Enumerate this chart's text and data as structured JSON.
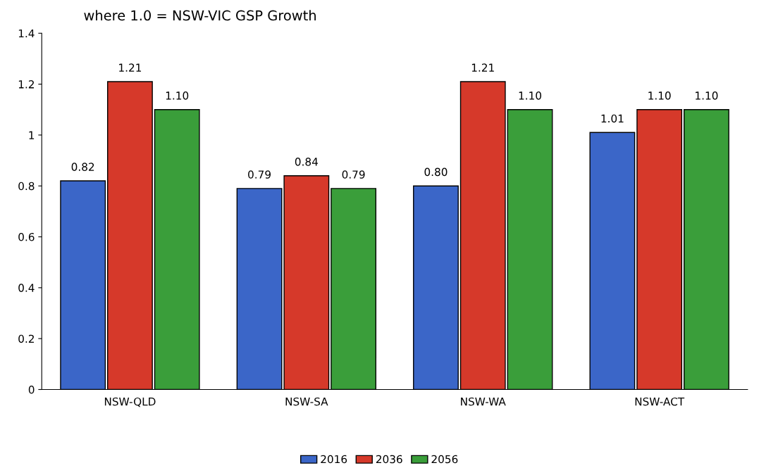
{
  "chart_data": {
    "type": "bar",
    "title": "where 1.0 = NSW-VIC GSP Growth",
    "categories": [
      "NSW-QLD",
      "NSW-SA",
      "NSW-WA",
      "NSW-ACT"
    ],
    "series": [
      {
        "name": "2016",
        "color": "#3b66c8",
        "values": [
          0.82,
          0.79,
          0.8,
          1.01
        ],
        "value_labels": [
          "0.82",
          "0.79",
          "0.80",
          "1.01"
        ]
      },
      {
        "name": "2036",
        "color": "#d6392a",
        "values": [
          1.21,
          0.84,
          1.21,
          1.1
        ],
        "value_labels": [
          "1.21",
          "0.84",
          "1.21",
          "1.10"
        ]
      },
      {
        "name": "2056",
        "color": "#3a9e3a",
        "values": [
          1.1,
          0.79,
          1.1,
          1.1
        ],
        "value_labels": [
          "1.10",
          "0.79",
          "1.10",
          "1.10"
        ]
      }
    ],
    "ylim": [
      0,
      1.4
    ],
    "yticks": [
      0,
      0.2,
      0.4,
      0.6,
      0.8,
      1,
      1.2,
      1.4
    ],
    "grid": false,
    "legend": "bottom"
  }
}
